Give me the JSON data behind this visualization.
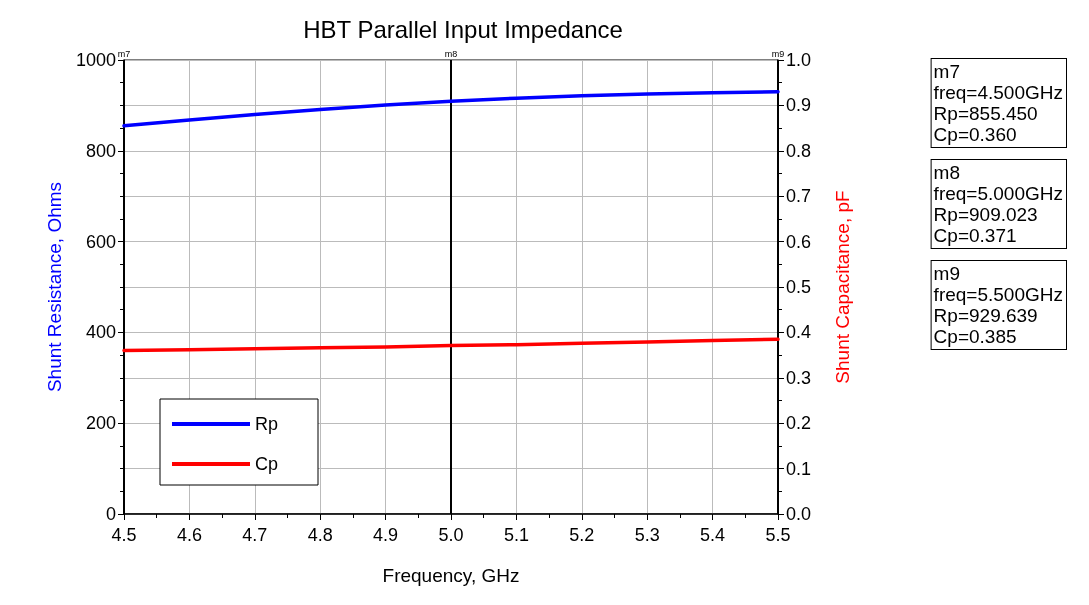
{
  "chart_data": {
    "type": "line",
    "title": "HBT Parallel Input Impedance",
    "xlabel": "Frequency, GHz",
    "ylabel": "Shunt Resistance, Ohms",
    "y2label": "Shunt Capacitance, pF",
    "x": [
      4.5,
      4.6,
      4.7,
      4.8,
      4.9,
      5.0,
      5.1,
      5.2,
      5.3,
      5.4,
      5.5
    ],
    "series": [
      {
        "name": "Rp",
        "color": "#0000ff",
        "values": [
          855,
          868,
          880,
          891,
          901,
          909,
          916,
          921,
          925,
          928,
          930
        ]
      },
      {
        "name": "Cp",
        "color": "#ff0000",
        "axis": "y2",
        "values": [
          0.36,
          0.362,
          0.364,
          0.366,
          0.368,
          0.371,
          0.373,
          0.376,
          0.379,
          0.382,
          0.385
        ]
      }
    ],
    "xlim": [
      4.5,
      5.5
    ],
    "xticks": [
      4.5,
      4.6,
      4.7,
      4.8,
      4.9,
      {
        "value": 5,
        "label": "5.0"
      },
      5.1,
      5.2,
      5.3,
      5.4,
      5.5
    ],
    "ylim": [
      0,
      1000
    ],
    "yticks": [
      0,
      200,
      400,
      600,
      800,
      1000
    ],
    "y2lim": [
      0,
      1.0
    ],
    "y2ticks": [
      {
        "value": 0,
        "label": "0.0"
      },
      0.1,
      0.2,
      0.3,
      0.4,
      0.5,
      0.6,
      0.7,
      0.8,
      0.9,
      {
        "value": 1,
        "label": "1.0"
      }
    ],
    "ref_lines": [
      {
        "axis": "x",
        "value": 4.5,
        "label": "m7",
        "color": "#000000"
      },
      {
        "axis": "x",
        "value": 5.0,
        "label": "m8",
        "color": "#000000"
      },
      {
        "axis": "x",
        "value": 5.5,
        "label": "m9",
        "color": "#000000"
      }
    ],
    "annotations": [
      "m7\nfreq=4.500GHz\nRp=855.450\nCp=0.360",
      "m8\nfreq=5.000GHz\nRp=909.023\nCp=0.371",
      "m9\nfreq=5.500GHz\nRp=929.639\nCp=0.385"
    ],
    "grid": true,
    "legend": "bottom left",
    "marker": "none",
    "line_style": "solid"
  }
}
